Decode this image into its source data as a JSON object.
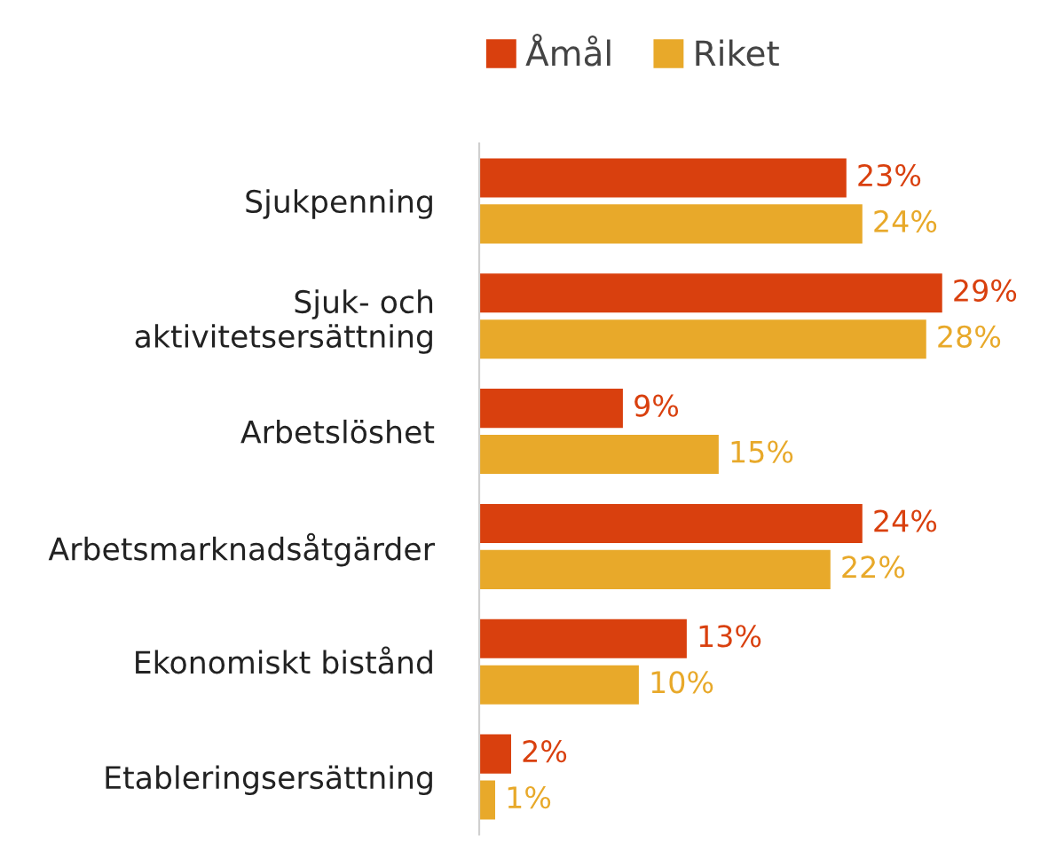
{
  "chart_data": {
    "type": "bar",
    "orientation": "horizontal",
    "categories": [
      "Sjukpenning",
      "Sjuk- och\naktivitetsersättning",
      "Arbetslöshet",
      "Arbetsmarknadsåtgärder",
      "Ekonomiskt bistånd",
      "Etableringsersättning"
    ],
    "series": [
      {
        "name": "Åmål",
        "color": "#d9400e",
        "values": [
          23,
          29,
          9,
          24,
          13,
          2
        ],
        "value_labels": [
          "23%",
          "29%",
          "9%",
          "24%",
          "13%",
          "2%"
        ]
      },
      {
        "name": "Riket",
        "color": "#e8a92a",
        "values": [
          24,
          28,
          15,
          22,
          10,
          1
        ],
        "value_labels": [
          "24%",
          "28%",
          "15%",
          "22%",
          "10%",
          "1%"
        ]
      }
    ],
    "legend": "top",
    "grid": false
  }
}
